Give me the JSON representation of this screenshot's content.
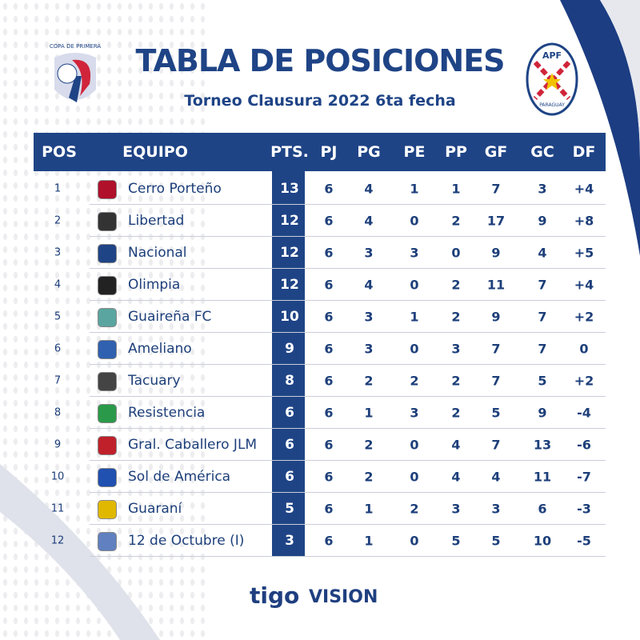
{
  "header": {
    "title": "TABLA DE POSICIONES",
    "subtitle": "Torneo Clausura 2022 6ta fecha",
    "left_logo_text": "COPA DE PRIMERA",
    "right_logo_text": "APF PARAGUAY"
  },
  "columns": [
    "POS",
    "EQUIPO",
    "PTS.",
    "PJ",
    "PG",
    "PE",
    "PP",
    "GF",
    "GC",
    "DF"
  ],
  "rows": [
    {
      "pos": "1",
      "team": "Cerro Porteño",
      "pts": "13",
      "pj": "6",
      "pg": "4",
      "pe": "1",
      "pp": "1",
      "gf": "7",
      "gc": "3",
      "df": "+4",
      "color": "#b0102a"
    },
    {
      "pos": "2",
      "team": "Libertad",
      "pts": "12",
      "pj": "6",
      "pg": "4",
      "pe": "0",
      "pp": "2",
      "gf": "17",
      "gc": "9",
      "df": "+8",
      "color": "#333333"
    },
    {
      "pos": "3",
      "team": "Nacional",
      "pts": "12",
      "pj": "6",
      "pg": "3",
      "pe": "3",
      "pp": "0",
      "gf": "9",
      "gc": "4",
      "df": "+5",
      "color": "#1f4486"
    },
    {
      "pos": "4",
      "team": "Olimpia",
      "pts": "12",
      "pj": "6",
      "pg": "4",
      "pe": "0",
      "pp": "2",
      "gf": "11",
      "gc": "7",
      "df": "+4",
      "color": "#222222"
    },
    {
      "pos": "5",
      "team": "Guaireña FC",
      "pts": "10",
      "pj": "6",
      "pg": "3",
      "pe": "1",
      "pp": "2",
      "gf": "9",
      "gc": "7",
      "df": "+2",
      "color": "#5aa5a0"
    },
    {
      "pos": "6",
      "team": "Ameliano",
      "pts": "9",
      "pj": "6",
      "pg": "3",
      "pe": "0",
      "pp": "3",
      "gf": "7",
      "gc": "7",
      "df": "0",
      "color": "#3060b0"
    },
    {
      "pos": "7",
      "team": "Tacuary",
      "pts": "8",
      "pj": "6",
      "pg": "2",
      "pe": "2",
      "pp": "2",
      "gf": "7",
      "gc": "5",
      "df": "+2",
      "color": "#444444"
    },
    {
      "pos": "8",
      "team": "Resistencia",
      "pts": "6",
      "pj": "6",
      "pg": "1",
      "pe": "3",
      "pp": "2",
      "gf": "5",
      "gc": "9",
      "df": "-4",
      "color": "#2a9a4a"
    },
    {
      "pos": "9",
      "team": "Gral. Caballero JLM",
      "pts": "6",
      "pj": "6",
      "pg": "2",
      "pe": "0",
      "pp": "4",
      "gf": "7",
      "gc": "13",
      "df": "-6",
      "color": "#c0202a"
    },
    {
      "pos": "10",
      "team": "Sol de América",
      "pts": "6",
      "pj": "6",
      "pg": "2",
      "pe": "0",
      "pp": "4",
      "gf": "4",
      "gc": "11",
      "df": "-7",
      "color": "#2050b0"
    },
    {
      "pos": "11",
      "team": "Guaraní",
      "pts": "5",
      "pj": "6",
      "pg": "1",
      "pe": "2",
      "pp": "3",
      "gf": "3",
      "gc": "6",
      "df": "-3",
      "color": "#e0b800"
    },
    {
      "pos": "12",
      "team": "12 de Octubre (I)",
      "pts": "3",
      "pj": "6",
      "pg": "1",
      "pe": "0",
      "pp": "5",
      "gf": "5",
      "gc": "10",
      "df": "-5",
      "color": "#6080c0"
    }
  ],
  "sponsors": [
    "tigo",
    "VISION"
  ]
}
